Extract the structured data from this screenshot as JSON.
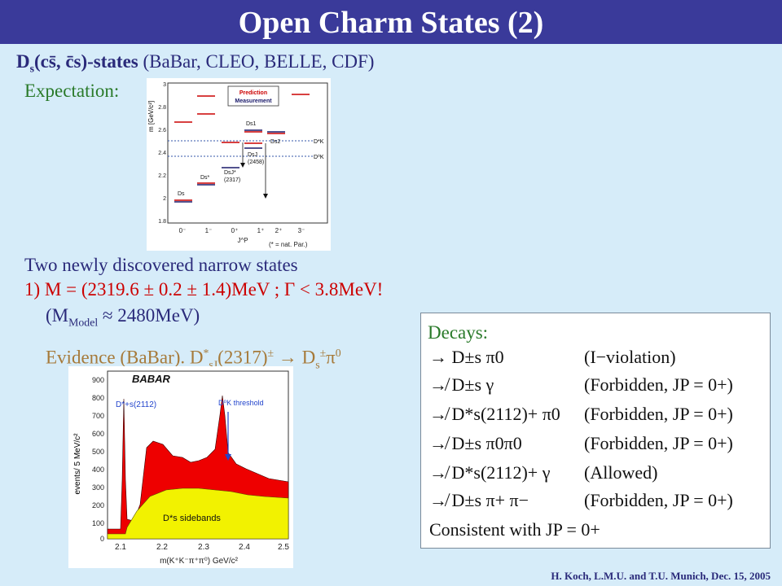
{
  "header": {
    "title": "Open Charm States (2)"
  },
  "intro": {
    "heading_bold": "D",
    "heading_sub": "s",
    "heading_bold_rest": "(cs̄, c̄s)-states",
    "heading_rest": " (BaBar, CLEO, BELLE, CDF)",
    "expectation_label": "Expectation:"
  },
  "expectation_plot": {
    "y_axis_label": "m [GeV/c²]",
    "y_ticks": [
      "3",
      "2.8",
      "2.6",
      "2.4",
      "2.2",
      "2",
      "1.8"
    ],
    "x_ticks": [
      "0⁻",
      "1⁻",
      "0⁺",
      "1⁺",
      "2⁺",
      "3⁻"
    ],
    "x_axis_label": "J^P",
    "footnote": "(* = nat. Par.)",
    "legend_prediction": "Prediction",
    "legend_measurement": "Measurement",
    "labels": {
      "ds": "Ds",
      "dsstar": "Ds*",
      "ds1": "Ds1",
      "ds2": "Ds2",
      "dsj2317": "DsJ*",
      "dsj2317_mass": "(2317)",
      "dsj2458": "DsJ",
      "dsj2458_mass": "(2458)",
      "dstar_k": "D*K",
      "d0_k": "D⁰K"
    },
    "colors": {
      "prediction": "#cc0000",
      "measurement": "#1a1a6a",
      "threshold": "#3355aa"
    }
  },
  "body": {
    "line1": "Two newly discovered narrow states",
    "line2": "1) M = (2319.6 ± 0.2 ± 1.4)MeV ; Γ < 3.8MeV!",
    "line3_pre": "(M",
    "line3_sub": "Model",
    "line3_post": " ≈ 2480MeV)",
    "evidence_pre": "Evidence (BaBar). D",
    "evidence_sup": "*",
    "evidence_sub": "sJ",
    "evidence_post": "(2317)",
    "evidence_pm": "±",
    "evidence_arrow": " → D",
    "evidence_sub2": "s",
    "evidence_sup2": "±",
    "evidence_pi": "π",
    "evidence_pi_sup": "0"
  },
  "babar_plot": {
    "logo": "BABAR",
    "y_axis_label": "events/ 5 MeV/c²",
    "y_ticks": [
      "900",
      "800",
      "700",
      "600",
      "500",
      "400",
      "300",
      "200",
      "100",
      "0"
    ],
    "x_ticks": [
      "2.1",
      "2.2",
      "2.3",
      "2.4",
      "2.5"
    ],
    "x_axis_label": "m(K⁺K⁻π⁺π⁰) GeV/c²",
    "dstar_label": "D*+s(2112)",
    "threshold_label": "D⁰K threshold",
    "sidebands_label": "D*s sidebands",
    "colors": {
      "signal": "#ee0000",
      "sidebands": "#f2f200",
      "annotation": "#2244cc"
    }
  },
  "decays": {
    "title": "Decays:",
    "rows": [
      {
        "lhs": "→ D±s π0",
        "rhs": "(I−violation)"
      },
      {
        "lhs": "↛ D±s γ",
        "rhs": "(Forbidden, JP = 0+)"
      },
      {
        "lhs": "↛ D*s(2112)+ π0",
        "rhs": "(Forbidden, JP = 0+)"
      },
      {
        "lhs": "↛ D±s π0π0",
        "rhs": "(Forbidden, JP = 0+)"
      },
      {
        "lhs": "↛ D*s(2112)+ γ",
        "rhs": "(Allowed)"
      },
      {
        "lhs": "↛ D±s π+ π−",
        "rhs": "(Forbidden, JP = 0+)"
      }
    ],
    "conclusion": "Consistent with JP = 0+"
  },
  "footer": {
    "text": "H. Koch, L.M.U. and T.U. Munich, Dec. 15, 2005"
  }
}
